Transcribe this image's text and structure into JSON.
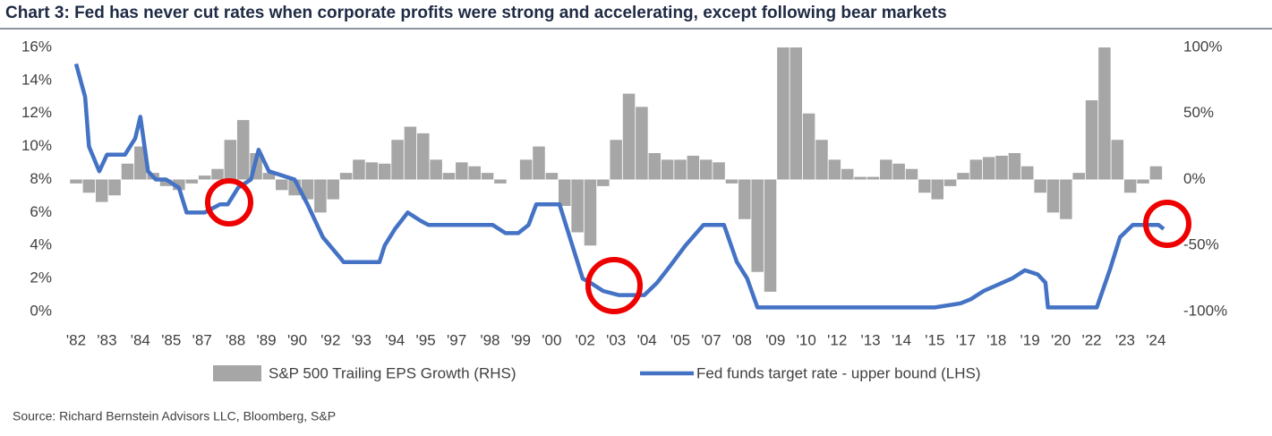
{
  "chart_data": {
    "type": "combo",
    "title": "Chart 3: Fed has never cut rates when corporate profits were strong and accelerating, except following bear markets",
    "source": "Source: Richard Bernstein Advisors LLC, Bloomberg, S&P",
    "xlim": [
      1982,
      2024.3
    ],
    "xticks": [
      {
        "value": 1982,
        "label": "'82"
      },
      {
        "value": 1983.2,
        "label": "'83"
      },
      {
        "value": 1984.5,
        "label": "'84"
      },
      {
        "value": 1985.7,
        "label": "'85"
      },
      {
        "value": 1986.9,
        "label": "'87"
      },
      {
        "value": 1988.2,
        "label": "'88"
      },
      {
        "value": 1989.4,
        "label": "'89"
      },
      {
        "value": 1990.6,
        "label": "'90"
      },
      {
        "value": 1991.9,
        "label": "'92"
      },
      {
        "value": 1993.1,
        "label": "'93"
      },
      {
        "value": 1994.4,
        "label": "'94"
      },
      {
        "value": 1995.6,
        "label": "'95"
      },
      {
        "value": 1996.8,
        "label": "'97"
      },
      {
        "value": 1998.1,
        "label": "'98"
      },
      {
        "value": 1999.3,
        "label": "'99"
      },
      {
        "value": 2000.5,
        "label": "'00"
      },
      {
        "value": 2001.8,
        "label": "'02"
      },
      {
        "value": 2003,
        "label": "'03"
      },
      {
        "value": 2004.2,
        "label": "'04"
      },
      {
        "value": 2005.5,
        "label": "'05"
      },
      {
        "value": 2006.7,
        "label": "'07"
      },
      {
        "value": 2007.9,
        "label": "'08"
      },
      {
        "value": 2009.2,
        "label": "'09"
      },
      {
        "value": 2010.4,
        "label": "'10"
      },
      {
        "value": 2011.6,
        "label": "'12"
      },
      {
        "value": 2012.9,
        "label": "'13"
      },
      {
        "value": 2014.1,
        "label": "'14"
      },
      {
        "value": 2015.4,
        "label": "'15"
      },
      {
        "value": 2016.6,
        "label": "'17"
      },
      {
        "value": 2017.8,
        "label": "'18"
      },
      {
        "value": 2019.1,
        "label": "'19"
      },
      {
        "value": 2020.3,
        "label": "'20"
      },
      {
        "value": 2021.5,
        "label": "'22"
      },
      {
        "value": 2022.8,
        "label": "'23"
      },
      {
        "value": 2024,
        "label": "'24"
      }
    ],
    "ylim": [
      0,
      16
    ],
    "yticks": [
      {
        "value": 0,
        "label": "0%"
      },
      {
        "value": 2,
        "label": "2%"
      },
      {
        "value": 4,
        "label": "4%"
      },
      {
        "value": 6,
        "label": "6%"
      },
      {
        "value": 8,
        "label": "8%"
      },
      {
        "value": 10,
        "label": "10%"
      },
      {
        "value": 12,
        "label": "12%"
      },
      {
        "value": 14,
        "label": "14%"
      },
      {
        "value": 16,
        "label": "16%"
      }
    ],
    "y2lim": [
      -100,
      100
    ],
    "y2ticks": [
      {
        "value": -100,
        "label": "-100%"
      },
      {
        "value": -50,
        "label": "-50%"
      },
      {
        "value": 0,
        "label": "0%"
      },
      {
        "value": 50,
        "label": "50%"
      },
      {
        "value": 100,
        "label": "100%"
      }
    ],
    "grid": false,
    "series": [
      {
        "name": "S&P 500 Trailing EPS Growth (RHS)",
        "type": "bar",
        "axis": "y2",
        "color": "#a6a6a6",
        "x": [
          1982,
          1982.5,
          1983,
          1983.5,
          1984,
          1984.5,
          1985,
          1985.5,
          1986,
          1986.5,
          1987,
          1987.5,
          1988,
          1988.5,
          1989,
          1989.5,
          1990,
          1990.5,
          1991,
          1991.5,
          1992,
          1992.5,
          1993,
          1993.5,
          1994,
          1994.5,
          1995,
          1995.5,
          1996,
          1996.5,
          1997,
          1997.5,
          1998,
          1998.5,
          1999,
          1999.5,
          2000,
          2000.5,
          2001,
          2001.5,
          2002,
          2002.5,
          2003,
          2003.5,
          2004,
          2004.5,
          2005,
          2005.5,
          2006,
          2006.5,
          2007,
          2007.5,
          2008,
          2008.5,
          2009,
          2009.5,
          2010,
          2010.5,
          2011,
          2011.5,
          2012,
          2012.5,
          2013,
          2013.5,
          2014,
          2014.5,
          2015,
          2015.5,
          2016,
          2016.5,
          2017,
          2017.5,
          2018,
          2018.5,
          2019,
          2019.5,
          2020,
          2020.5,
          2021,
          2021.5,
          2022,
          2022.5,
          2023,
          2023.5,
          2024
        ],
        "values": [
          -3,
          -10,
          -17,
          -12,
          12,
          25,
          5,
          -5,
          -8,
          -3,
          3,
          8,
          30,
          45,
          20,
          5,
          -8,
          -12,
          -15,
          -25,
          -15,
          5,
          15,
          13,
          12,
          30,
          40,
          35,
          15,
          5,
          13,
          10,
          5,
          -3,
          0,
          15,
          25,
          5,
          -20,
          -40,
          -50,
          -5,
          30,
          65,
          55,
          20,
          15,
          15,
          18,
          15,
          13,
          -3,
          -30,
          -70,
          -85,
          100,
          100,
          50,
          30,
          15,
          8,
          2,
          2,
          15,
          12,
          8,
          -10,
          -15,
          -5,
          5,
          15,
          17,
          18,
          20,
          10,
          -10,
          -25,
          -30,
          5,
          60,
          100,
          30,
          -10,
          -3,
          10
        ]
      },
      {
        "name": "Fed funds target rate - upper bound (LHS)",
        "type": "line",
        "axis": "y",
        "color": "#4472c4",
        "x": [
          1982,
          1982.35,
          1982.5,
          1982.9,
          1983.2,
          1983.9,
          1984.3,
          1984.5,
          1984.8,
          1985.1,
          1985.5,
          1986,
          1986.3,
          1987,
          1987.6,
          1987.9,
          1988.3,
          1988.8,
          1989.1,
          1989.5,
          1990.5,
          1991,
          1991.6,
          1992.3,
          1992.4,
          1993.8,
          1994,
          1994.4,
          1994.9,
          1995.4,
          1995.7,
          1998.2,
          1998.7,
          1999.2,
          1999.6,
          1999.9,
          2000.8,
          2001.3,
          2001.7,
          2002,
          2002.5,
          2003.1,
          2004.1,
          2004.6,
          2005.1,
          2005.7,
          2006.4,
          2007.2,
          2007.7,
          2008.1,
          2008.5,
          2015.4,
          2016.4,
          2016.8,
          2017.3,
          2018.4,
          2018.9,
          2019.4,
          2019.7,
          2019.8,
          2021.7,
          2022.2,
          2022.6,
          2023.1,
          2024.1,
          2024.3
        ],
        "values": [
          15,
          13,
          10,
          8.5,
          9.5,
          9.5,
          10.5,
          11.8,
          8.5,
          8,
          8,
          7.5,
          6,
          6,
          6.5,
          6.5,
          7.5,
          8,
          9.8,
          8.5,
          8,
          6.5,
          4.5,
          3.2,
          3,
          3,
          4,
          5,
          6,
          5.5,
          5.25,
          5.25,
          4.75,
          4.75,
          5.25,
          6.5,
          6.5,
          4,
          2,
          1.75,
          1.25,
          1,
          1,
          1.75,
          2.75,
          4,
          5.25,
          5.25,
          3,
          2,
          0.25,
          0.25,
          0.5,
          0.75,
          1.25,
          2,
          2.5,
          2.25,
          1.75,
          0.25,
          0.25,
          2.5,
          4.5,
          5.25,
          5.25,
          5
        ]
      }
    ]
  }
}
